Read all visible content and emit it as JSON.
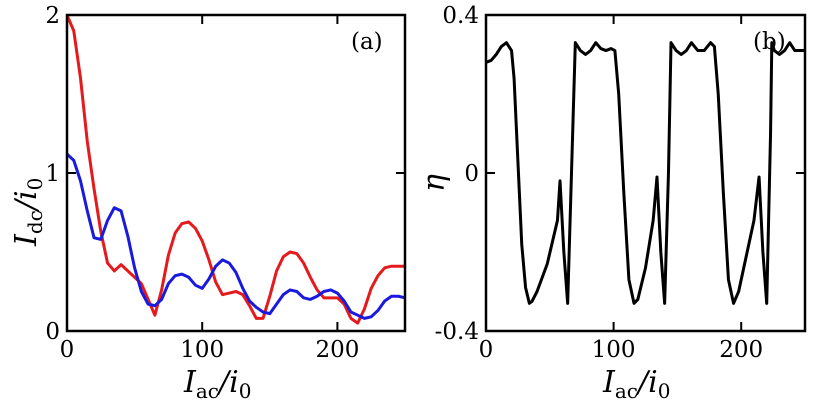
{
  "chart_data": [
    {
      "type": "line",
      "panel_label": "(a)",
      "xlabel": {
        "main": "I",
        "sub": "ac",
        "tail": "/i",
        "tail_sub": "0"
      },
      "ylabel": {
        "main": "I",
        "sub": "dc",
        "tail": "/i",
        "tail_sub": "0"
      },
      "xlim": [
        0,
        250
      ],
      "ylim": [
        0,
        2
      ],
      "xticks": [
        0,
        100,
        200
      ],
      "yticks": [
        0,
        1,
        2
      ],
      "xtick_labels": [
        "0",
        "100",
        "200"
      ],
      "ytick_labels": [
        "0",
        "1",
        "2"
      ],
      "grid": false,
      "series": [
        {
          "color": "#e41a1c",
          "x": [
            0,
            5,
            10,
            15,
            20,
            25,
            30,
            35,
            40,
            45,
            50,
            55,
            60,
            65,
            70,
            75,
            80,
            85,
            90,
            95,
            100,
            105,
            110,
            115,
            120,
            125,
            130,
            135,
            140,
            145,
            150,
            155,
            160,
            165,
            170,
            175,
            180,
            185,
            190,
            195,
            200,
            205,
            210,
            215,
            220,
            225,
            230,
            235,
            240,
            245,
            250
          ],
          "y": [
            2.0,
            1.9,
            1.6,
            1.2,
            0.9,
            0.63,
            0.43,
            0.38,
            0.42,
            0.38,
            0.34,
            0.3,
            0.2,
            0.1,
            0.26,
            0.48,
            0.62,
            0.68,
            0.69,
            0.65,
            0.57,
            0.45,
            0.31,
            0.23,
            0.24,
            0.25,
            0.23,
            0.16,
            0.08,
            0.08,
            0.22,
            0.38,
            0.47,
            0.5,
            0.49,
            0.43,
            0.34,
            0.26,
            0.21,
            0.21,
            0.21,
            0.17,
            0.08,
            0.05,
            0.14,
            0.27,
            0.35,
            0.4,
            0.41,
            0.41,
            0.41
          ]
        },
        {
          "color": "#1a1adf",
          "x": [
            0,
            5,
            10,
            15,
            20,
            25,
            30,
            35,
            40,
            45,
            50,
            55,
            60,
            65,
            70,
            75,
            80,
            85,
            90,
            95,
            100,
            105,
            110,
            115,
            120,
            125,
            130,
            135,
            140,
            145,
            150,
            155,
            160,
            165,
            170,
            175,
            180,
            185,
            190,
            195,
            200,
            205,
            210,
            215,
            220,
            225,
            230,
            235,
            240,
            245,
            250
          ],
          "y": [
            1.12,
            1.08,
            0.95,
            0.76,
            0.59,
            0.58,
            0.7,
            0.78,
            0.76,
            0.6,
            0.4,
            0.25,
            0.17,
            0.16,
            0.2,
            0.3,
            0.35,
            0.36,
            0.34,
            0.29,
            0.27,
            0.33,
            0.41,
            0.45,
            0.43,
            0.37,
            0.27,
            0.19,
            0.15,
            0.12,
            0.11,
            0.17,
            0.23,
            0.26,
            0.25,
            0.21,
            0.2,
            0.22,
            0.25,
            0.26,
            0.24,
            0.19,
            0.12,
            0.1,
            0.08,
            0.09,
            0.13,
            0.19,
            0.22,
            0.22,
            0.21
          ]
        }
      ]
    },
    {
      "type": "line",
      "panel_label": "(b)",
      "xlabel": {
        "main": "I",
        "sub": "ac",
        "tail": "/i",
        "tail_sub": "0"
      },
      "ylabel": {
        "main": "η"
      },
      "xlim": [
        0,
        250
      ],
      "ylim": [
        -0.4,
        0.4
      ],
      "xticks": [
        0,
        100,
        200
      ],
      "yticks": [
        -0.4,
        0,
        0.4
      ],
      "xtick_labels": [
        "0",
        "100",
        "200"
      ],
      "ytick_labels": [
        "-0.4",
        "0",
        "0.4"
      ],
      "grid": false,
      "series": [
        {
          "color": "#000000",
          "x": [
            0,
            4,
            8,
            12,
            16,
            20,
            22,
            25,
            28,
            31,
            34,
            36,
            40,
            48,
            56,
            58,
            61,
            64,
            67,
            70,
            74,
            78,
            82,
            86,
            90,
            94,
            98,
            101,
            104,
            108,
            112,
            116,
            119,
            125,
            131,
            134,
            137,
            140,
            143,
            145,
            149,
            153,
            157,
            161,
            166,
            171,
            176,
            179,
            182,
            186,
            190,
            194,
            198,
            210,
            214,
            217,
            220,
            223,
            224,
            226,
            230,
            234,
            238,
            242,
            246,
            250
          ],
          "y": [
            0.28,
            0.285,
            0.3,
            0.32,
            0.33,
            0.31,
            0.24,
            0.03,
            -0.18,
            -0.29,
            -0.33,
            -0.325,
            -0.3,
            -0.23,
            -0.12,
            -0.02,
            -0.2,
            -0.33,
            0.0,
            0.33,
            0.31,
            0.3,
            0.31,
            0.33,
            0.315,
            0.31,
            0.315,
            0.31,
            0.2,
            -0.05,
            -0.27,
            -0.33,
            -0.32,
            -0.24,
            -0.12,
            -0.01,
            -0.2,
            -0.33,
            0.0,
            0.33,
            0.31,
            0.3,
            0.31,
            0.33,
            0.31,
            0.31,
            0.33,
            0.32,
            0.2,
            -0.05,
            -0.27,
            -0.33,
            -0.3,
            -0.12,
            -0.01,
            -0.2,
            -0.33,
            0.1,
            0.33,
            0.31,
            0.3,
            0.31,
            0.33,
            0.31,
            0.31,
            0.31
          ]
        }
      ]
    }
  ]
}
